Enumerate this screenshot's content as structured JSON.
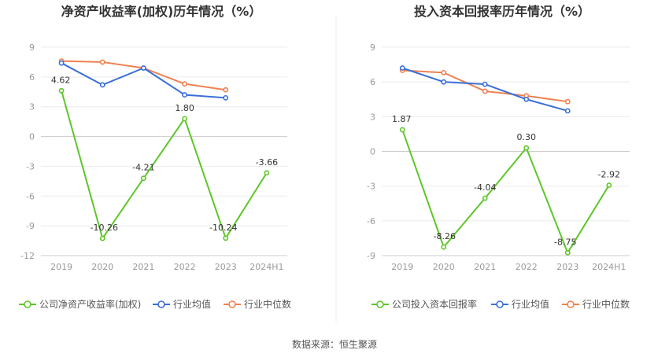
{
  "source_label": "数据来源：恒生聚源",
  "chart_data": [
    {
      "type": "line",
      "title": "净资产收益率(加权)历年情况（%）",
      "categories": [
        "2019",
        "2020",
        "2021",
        "2022",
        "2023",
        "2024H1"
      ],
      "ylim": [
        -12,
        9
      ],
      "yticks": [
        9,
        6,
        3,
        0,
        -3,
        -6,
        -9,
        -12
      ],
      "grid": true,
      "legend_position": "bottom",
      "series": [
        {
          "name": "公司净资产收益率(加权)",
          "color": "#5ec628",
          "values": [
            4.62,
            -10.26,
            -4.21,
            1.8,
            -10.24,
            -3.66
          ],
          "labels": [
            "4.62",
            "-10.26",
            "-4.21",
            "1.80",
            "-10.24",
            "-3.66"
          ]
        },
        {
          "name": "行业均值",
          "color": "#3a6fd8",
          "values": [
            7.4,
            5.2,
            6.9,
            4.2,
            3.9,
            null
          ]
        },
        {
          "name": "行业中位数",
          "color": "#f08050",
          "values": [
            7.6,
            7.5,
            6.9,
            5.3,
            4.7,
            null
          ]
        }
      ]
    },
    {
      "type": "line",
      "title": "投入资本回报率历年情况（%）",
      "categories": [
        "2019",
        "2020",
        "2021",
        "2022",
        "2023",
        "2024H1"
      ],
      "ylim": [
        -9,
        9
      ],
      "yticks": [
        9,
        6,
        3,
        0,
        -3,
        -6,
        -9
      ],
      "grid": true,
      "legend_position": "bottom",
      "series": [
        {
          "name": "公司投入资本回报率",
          "color": "#5ec628",
          "values": [
            1.87,
            -8.26,
            -4.04,
            0.3,
            -8.75,
            -2.92
          ],
          "labels": [
            "1.87",
            "-8.26",
            "-4.04",
            "0.30",
            "-8.75",
            "-2.92"
          ]
        },
        {
          "name": "行业均值",
          "color": "#3a6fd8",
          "values": [
            7.2,
            6.0,
            5.8,
            4.5,
            3.5,
            null
          ]
        },
        {
          "name": "行业中位数",
          "color": "#f08050",
          "values": [
            7.0,
            6.8,
            5.2,
            4.8,
            4.3,
            null
          ]
        }
      ]
    }
  ]
}
